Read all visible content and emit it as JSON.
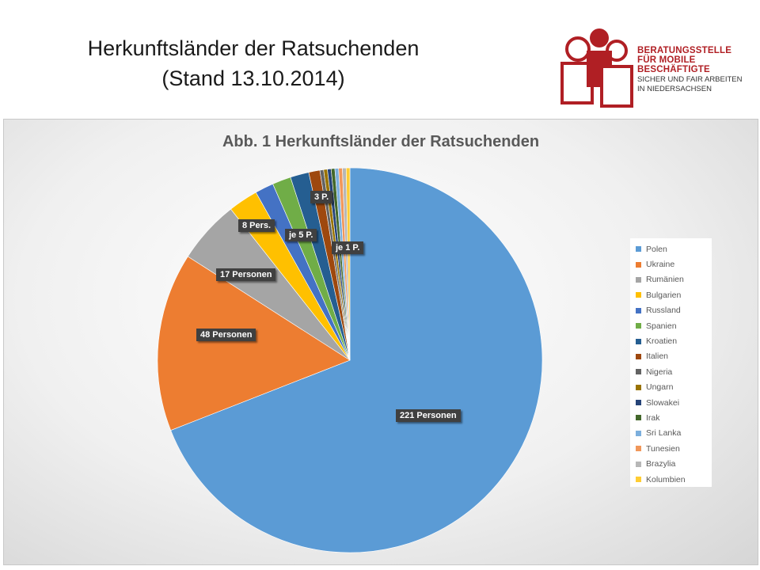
{
  "slide": {
    "title_line1": "Herkunftsländer der Ratsuchenden",
    "title_line2": "(Stand 13.10.2014)"
  },
  "logo": {
    "line1": "BERATUNGSSTELLE",
    "line2": "FÜR MOBILE",
    "line3": "BESCHÄFTIGTE",
    "line4": "SICHER UND FAIR ARBEITEN",
    "line5": "IN NIEDERSACHSEN",
    "colors": {
      "red": "#b01f24"
    }
  },
  "chart_data": {
    "type": "pie",
    "title": "Abb. 1 Herkunftsländer der Ratsuchenden",
    "legend_position": "right",
    "slices": [
      {
        "name": "Polen",
        "value": 221,
        "color": "#5b9bd5"
      },
      {
        "name": "Ukraine",
        "value": 48,
        "color": "#ed7d31"
      },
      {
        "name": "Rumänien",
        "value": 17,
        "color": "#a5a5a5"
      },
      {
        "name": "Bulgarien",
        "value": 8,
        "color": "#ffc000"
      },
      {
        "name": "Russland",
        "value": 5,
        "color": "#4472c4"
      },
      {
        "name": "Spanien",
        "value": 5,
        "color": "#70ad47"
      },
      {
        "name": "Kroatien",
        "value": 5,
        "color": "#255e91"
      },
      {
        "name": "Italien",
        "value": 3,
        "color": "#9e480e"
      },
      {
        "name": "Nigeria",
        "value": 1,
        "color": "#636363"
      },
      {
        "name": "Ungarn",
        "value": 1,
        "color": "#997300"
      },
      {
        "name": "Slowakei",
        "value": 1,
        "color": "#264478"
      },
      {
        "name": "Irak",
        "value": 1,
        "color": "#43682b"
      },
      {
        "name": "Sri Lanka",
        "value": 1,
        "color": "#7cafdd"
      },
      {
        "name": "Tunesien",
        "value": 1,
        "color": "#f1975a"
      },
      {
        "name": "Brazylia",
        "value": 1,
        "color": "#b7b7b7"
      },
      {
        "name": "Kolumbien",
        "value": 1,
        "color": "#ffcd33"
      }
    ],
    "data_labels": [
      {
        "text": "221 Personen"
      },
      {
        "text": "48 Personen"
      },
      {
        "text": "17 Personen"
      },
      {
        "text": "8 Pers."
      },
      {
        "text": "je 5 P."
      },
      {
        "text": "3 P."
      },
      {
        "text": "je 1 P."
      }
    ]
  }
}
